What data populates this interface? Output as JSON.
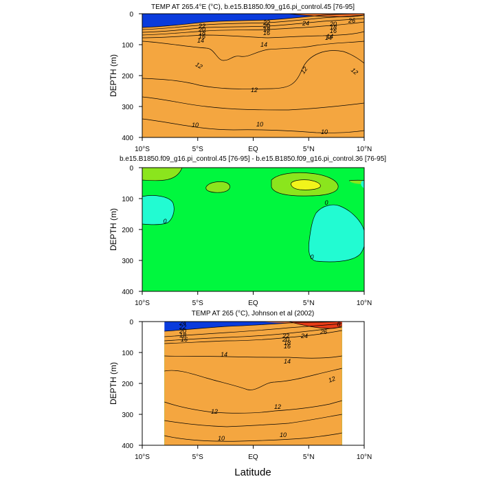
{
  "figure": {
    "x_axis_label": "Latitude"
  },
  "colors": {
    "c10": "#0a3bdc",
    "c11": "#0f74f5",
    "c12": "#129ff7",
    "c13": "#1fc8f6",
    "c14": "#1ef2ea",
    "c16": "#0fe896",
    "c18": "#2bd834",
    "c20": "#77d21c",
    "c22": "#c7d51d",
    "c24": "#f4a640",
    "c26": "#f7732a",
    "c28": "#e83b17",
    "diff_zero": "#00f73e",
    "diff_neg": "#22fbd2",
    "diff_pos": "#8be51d",
    "diff_max": "#f2f41b"
  },
  "chart_data": [
    {
      "type": "contour",
      "title": "TEMP AT 265.4°E (°C), b.e15.B1850.f09_g16.pi_control.45 [76-95]",
      "xlabel": "Latitude",
      "ylabel": "DEPTH (m)",
      "xlim": [
        -10,
        10
      ],
      "ylim": [
        400,
        0
      ],
      "xticks": [
        "10°S",
        "5°S",
        "EQ",
        "5°N",
        "10°N"
      ],
      "yticks": [
        "0",
        "100",
        "200",
        "300",
        "400"
      ],
      "contour_labels": [
        "22",
        "20",
        "18",
        "16",
        "14",
        "14",
        "14",
        "12",
        "12",
        "12",
        "12",
        "10",
        "10",
        "10",
        "22",
        "20",
        "18",
        "16",
        "24",
        "26",
        "20",
        "18",
        "16",
        "14"
      ],
      "isotherms": [
        {
          "level": 10,
          "depths": [
            [
              -10,
              340
            ],
            [
              -7.5,
              360
            ],
            [
              -5,
              375
            ],
            [
              -2.5,
              378
            ],
            [
              0,
              372
            ],
            [
              2.5,
              374
            ],
            [
              5,
              385
            ],
            [
              7.5,
              388
            ],
            [
              10,
              380
            ]
          ]
        },
        {
          "level": 11,
          "depths": [
            [
              -10,
              270
            ],
            [
              -7.5,
              280
            ],
            [
              -5,
              300
            ],
            [
              -2.5,
              305
            ],
            [
              0,
              312
            ],
            [
              2.5,
              310
            ],
            [
              5,
              305
            ],
            [
              7.5,
              298
            ],
            [
              10,
              288
            ]
          ]
        },
        {
          "level": 12,
          "depths": [
            [
              -10,
              210
            ],
            [
              -7.5,
              215
            ],
            [
              -5,
              232
            ],
            [
              -2.5,
              245
            ],
            [
              0,
              245
            ],
            [
              2.5,
              242
            ],
            [
              4,
              230
            ],
            [
              5,
              170
            ],
            [
              6.5,
              118
            ],
            [
              8,
              130
            ],
            [
              10,
              160
            ]
          ]
        },
        {
          "level": 13,
          "depths": [
            [
              -10,
              88
            ],
            [
              -7.5,
              95
            ],
            [
              -5,
              115
            ],
            [
              -3.5,
              150
            ],
            [
              -2.5,
              130
            ],
            [
              -1,
              145
            ],
            [
              0,
              125
            ],
            [
              2.5,
              115
            ],
            [
              5,
              110
            ],
            [
              6.5,
              100
            ],
            [
              8,
              105
            ],
            [
              10,
              90
            ]
          ]
        },
        {
          "level": 14,
          "depths": [
            [
              -10,
              78
            ],
            [
              -7.5,
              78
            ],
            [
              -5,
              72
            ],
            [
              -2.5,
              70
            ],
            [
              0,
              68
            ],
            [
              2.5,
              80
            ],
            [
              5,
              72
            ],
            [
              7.5,
              68
            ],
            [
              10,
              58
            ]
          ]
        },
        {
          "level": 16,
          "depths": [
            [
              -10,
              68
            ],
            [
              -7.5,
              66
            ],
            [
              -5,
              60
            ],
            [
              -2.5,
              55
            ],
            [
              0,
              52
            ],
            [
              2.5,
              50
            ],
            [
              5,
              44
            ],
            [
              7.5,
              40
            ],
            [
              10,
              36
            ]
          ]
        },
        {
          "level": 18,
          "depths": [
            [
              -10,
              60
            ],
            [
              -7.5,
              58
            ],
            [
              -5,
              52
            ],
            [
              -2.5,
              46
            ],
            [
              0,
              43
            ],
            [
              2.5,
              42
            ],
            [
              5,
              35
            ],
            [
              7.5,
              30
            ],
            [
              10,
              26
            ]
          ]
        },
        {
          "level": 20,
          "depths": [
            [
              -10,
              53
            ],
            [
              -7.5,
              50
            ],
            [
              -5,
              45
            ],
            [
              -2.5,
              38
            ],
            [
              0,
              34
            ],
            [
              2.5,
              33
            ],
            [
              5,
              27
            ],
            [
              7.5,
              22
            ],
            [
              10,
              18
            ]
          ]
        },
        {
          "level": 22,
          "depths": [
            [
              -10,
              45
            ],
            [
              -7.5,
              42
            ],
            [
              -5,
              36
            ],
            [
              -2.5,
              30
            ],
            [
              0,
              26
            ],
            [
              2.5,
              24
            ],
            [
              5,
              19
            ],
            [
              7.5,
              14
            ],
            [
              10,
              10
            ]
          ]
        },
        {
          "level": 24,
          "depths": [
            [
              -10,
              32
            ],
            [
              -7.5,
              30
            ],
            [
              -5,
              26
            ],
            [
              -2.5,
              22
            ],
            [
              0,
              18
            ],
            [
              2.5,
              14
            ],
            [
              5,
              10
            ],
            [
              7.5,
              6
            ],
            [
              10,
              4
            ]
          ]
        },
        {
          "level": 26,
          "depths": [
            [
              3.5,
              0
            ],
            [
              5,
              3
            ],
            [
              7.5,
              4
            ],
            [
              10,
              2
            ]
          ]
        }
      ]
    },
    {
      "type": "contour",
      "title": "b.e15.B1850.f09_g16.pi_control.45 [76-95] - b.e15.B1850.f09_g16.pi_control.36 [76-95]",
      "xlabel": "Latitude",
      "ylabel": "DEPTH (m)",
      "xlim": [
        -10,
        10
      ],
      "ylim": [
        400,
        0
      ],
      "xticks": [
        "10°S",
        "5°S",
        "EQ",
        "5°N",
        "10°N"
      ],
      "yticks": [
        "0",
        "100",
        "200",
        "300",
        "400"
      ],
      "contour_labels": [
        "0",
        "0",
        "0"
      ],
      "background_value": 0,
      "regions": [
        {
          "kind": "positive",
          "label": "surface patch west",
          "center": [
            -8.5,
            10
          ]
        },
        {
          "kind": "positive",
          "label": "patch near 4S",
          "center": [
            -3.5,
            55
          ]
        },
        {
          "kind": "positive",
          "label": "patch north",
          "center": [
            5.2,
            48
          ]
        },
        {
          "kind": "maximum",
          "label": "max north",
          "center": [
            5.2,
            50
          ]
        },
        {
          "kind": "negative",
          "label": "lobe south",
          "center": [
            -8.8,
            130
          ]
        },
        {
          "kind": "negative",
          "label": "lobe north",
          "center": [
            6.5,
            240
          ]
        }
      ]
    },
    {
      "type": "contour",
      "title": "TEMP AT 265 (°C), Johnson et al (2002)",
      "xlabel": "Latitude",
      "ylabel": "DEPTH (m)",
      "xlim": [
        -10,
        10
      ],
      "ylim": [
        400,
        0
      ],
      "data_x_range": [
        -8,
        8
      ],
      "xticks": [
        "10°S",
        "5°S",
        "EQ",
        "5°N",
        "10°N"
      ],
      "yticks": [
        "0",
        "100",
        "200",
        "300",
        "400"
      ],
      "contour_labels": [
        "24",
        "22",
        "20",
        "18",
        "16",
        "14",
        "14",
        "12",
        "12",
        "12",
        "10",
        "10",
        "22",
        "20",
        "18",
        "16",
        "24",
        "26",
        "8"
      ],
      "isotherms": [
        {
          "level": 10,
          "depths": [
            [
              -8,
              370
            ],
            [
              -5,
              385
            ],
            [
              -2.5,
              390
            ],
            [
              0,
              388
            ],
            [
              2.5,
              382
            ],
            [
              5,
              378
            ],
            [
              8,
              360
            ]
          ]
        },
        {
          "level": 11,
          "depths": [
            [
              -8,
              320
            ],
            [
              -5,
              332
            ],
            [
              -2.5,
              340
            ],
            [
              0,
              338
            ],
            [
              2.5,
              330
            ],
            [
              5,
              325
            ],
            [
              8,
              300
            ]
          ]
        },
        {
          "level": 12,
          "depths": [
            [
              -8,
              260
            ],
            [
              -5,
              282
            ],
            [
              -2.5,
              295
            ],
            [
              0,
              298
            ],
            [
              2.5,
              285
            ],
            [
              5,
              275
            ],
            [
              8,
              255
            ]
          ]
        },
        {
          "level": 13,
          "depths": [
            [
              -8,
              160
            ],
            [
              -6,
              150
            ],
            [
              -4,
              175
            ],
            [
              -2,
              190
            ],
            [
              0,
              225
            ],
            [
              2,
              200
            ],
            [
              4,
              190
            ],
            [
              6,
              165
            ],
            [
              8,
              150
            ]
          ]
        },
        {
          "level": 14,
          "depths": [
            [
              -8,
              110
            ],
            [
              -5,
              112
            ],
            [
              -2.5,
              110
            ],
            [
              0,
              113
            ],
            [
              2.5,
              115
            ],
            [
              5,
              120
            ],
            [
              8,
              110
            ]
          ]
        },
        {
          "level": 16,
          "depths": [
            [
              -8,
              72
            ],
            [
              -5,
              68
            ],
            [
              -2.5,
              64
            ],
            [
              0,
              62
            ],
            [
              2.5,
              62
            ],
            [
              5,
              52
            ],
            [
              8,
              44
            ]
          ]
        },
        {
          "level": 18,
          "depths": [
            [
              -8,
              62
            ],
            [
              -5,
              58
            ],
            [
              -2.5,
              55
            ],
            [
              0,
              52
            ],
            [
              2.5,
              50
            ],
            [
              5,
              42
            ],
            [
              8,
              34
            ]
          ]
        },
        {
          "level": 20,
          "depths": [
            [
              -8,
              50
            ],
            [
              -5,
              46
            ],
            [
              -2.5,
              42
            ],
            [
              0,
              40
            ],
            [
              2.5,
              36
            ],
            [
              5,
              30
            ],
            [
              8,
              24
            ]
          ]
        },
        {
          "level": 22,
          "depths": [
            [
              -8,
              38
            ],
            [
              -5,
              32
            ],
            [
              -2.5,
              28
            ],
            [
              0,
              26
            ],
            [
              2.5,
              22
            ],
            [
              5,
              18
            ],
            [
              8,
              14
            ]
          ]
        },
        {
          "level": 24,
          "depths": [
            [
              -8,
              22
            ],
            [
              -5,
              16
            ],
            [
              -2.5,
              14
            ],
            [
              0,
              12
            ],
            [
              2.5,
              9
            ],
            [
              5,
              6
            ],
            [
              8,
              4
            ]
          ]
        },
        {
          "level": 26,
          "depths": [
            [
              0.5,
              0
            ],
            [
              2.5,
              2
            ],
            [
              5,
              2
            ],
            [
              8,
              1
            ]
          ]
        }
      ]
    }
  ]
}
